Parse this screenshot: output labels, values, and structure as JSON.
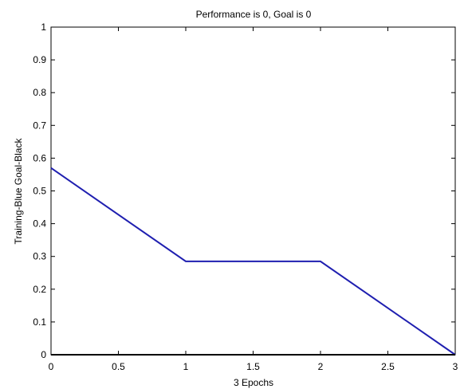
{
  "chart_data": {
    "type": "line",
    "title": "Performance is 0, Goal is 0",
    "xlabel": "3 Epochs",
    "ylabel": "Training-Blue  Goal-Black",
    "xlim": [
      0,
      3
    ],
    "ylim": [
      0,
      1
    ],
    "x_ticks": [
      0,
      0.5,
      1,
      1.5,
      2,
      2.5,
      3
    ],
    "x_tick_labels": [
      "0",
      "0.5",
      "1",
      "1.5",
      "2",
      "2.5",
      "3"
    ],
    "y_ticks": [
      0,
      0.1,
      0.2,
      0.3,
      0.4,
      0.5,
      0.6,
      0.7,
      0.8,
      0.9,
      1
    ],
    "y_tick_labels": [
      "0",
      "0.1",
      "0.2",
      "0.3",
      "0.4",
      "0.5",
      "0.6",
      "0.7",
      "0.8",
      "0.9",
      "1"
    ],
    "grid": false,
    "series": [
      {
        "x": [
          0,
          1,
          2,
          3
        ],
        "y": [
          0.57,
          0.285,
          0.285,
          0
        ],
        "color": "#1f1fb0"
      },
      {
        "x": [
          0,
          3
        ],
        "y": [
          0,
          0
        ],
        "color": "#000000"
      }
    ]
  }
}
